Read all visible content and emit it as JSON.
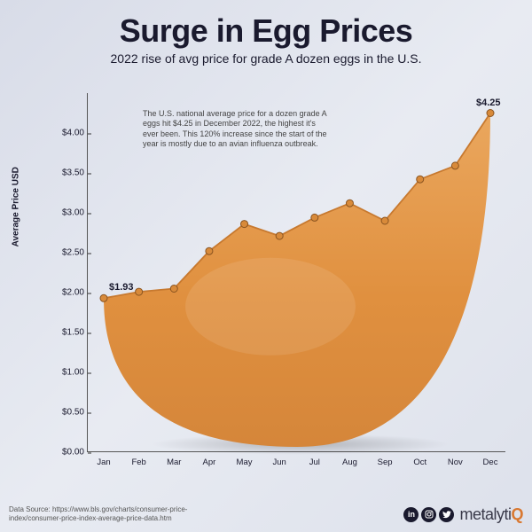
{
  "title": "Surge in Egg Prices",
  "subtitle": "2022 rise of avg price for grade A dozen eggs in the U.S.",
  "chart": {
    "type": "area-line",
    "ylabel": "Average Price USD",
    "annotation_text": "The U.S. national average price for a dozen grade A eggs hit $4.25 in December 2022, the highest it's ever been. This 120% increase since the start of the year is mostly due to an avian influenza outbreak.",
    "ylim": [
      0.0,
      4.5
    ],
    "ytick_step": 0.5,
    "yticks": [
      "$0.00",
      "$0.50",
      "$1.00",
      "$1.50",
      "$2.00",
      "$2.50",
      "$3.00",
      "$3.50",
      "$4.00"
    ],
    "categories": [
      "Jan",
      "Feb",
      "Mar",
      "Apr",
      "May",
      "Jun",
      "Jul",
      "Aug",
      "Sep",
      "Oct",
      "Nov",
      "Dec"
    ],
    "values": [
      1.93,
      2.01,
      2.05,
      2.52,
      2.86,
      2.71,
      2.94,
      3.12,
      2.9,
      3.42,
      3.59,
      4.25
    ],
    "callouts": [
      {
        "index": 0,
        "label": "$1.93"
      },
      {
        "index": 11,
        "label": "$4.25"
      }
    ],
    "line_color": "#c7792f",
    "marker_color": "#d88a3a",
    "marker_stroke": "#8a5420",
    "fill_top": "#e8a054",
    "fill_bottom": "#d98a3e",
    "background": "transparent",
    "axis_color": "#555555",
    "text_color": "#1a1a2e",
    "marker_radius": 4,
    "line_width": 1.8,
    "font_sizes": {
      "title": 36,
      "subtitle": 14,
      "ticks": 10,
      "annotation": 9,
      "callout": 11
    }
  },
  "footer": {
    "source_label": "Data Source:",
    "source_url": "https://www.bls.gov/charts/consumer-price-index/consumer-price-index-average-price-data.htm",
    "social": [
      "linkedin",
      "instagram",
      "twitter"
    ],
    "brand": "metalytiQ"
  }
}
